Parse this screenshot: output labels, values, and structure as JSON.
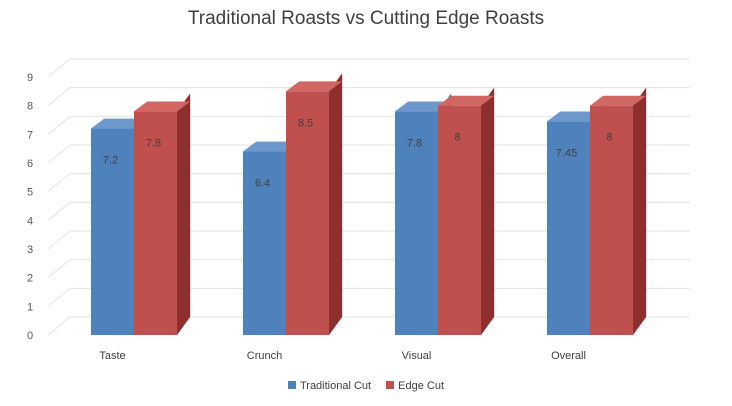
{
  "chart_data": {
    "type": "bar",
    "title": "Traditional Roasts vs Cutting Edge Roasts",
    "categories": [
      "Taste",
      "Crunch",
      "Visual",
      "Overall"
    ],
    "series": [
      {
        "name": "Traditional Cut",
        "values": [
          7.2,
          6.4,
          7.8,
          7.45
        ],
        "labels": [
          "7.2",
          "6.4",
          "7.8",
          "7.45"
        ],
        "color": "#4f81bd"
      },
      {
        "name": "Edge Cut",
        "values": [
          7.8,
          8.5,
          8,
          8
        ],
        "labels": [
          "7.8",
          "8.5",
          "8",
          "8"
        ],
        "color": "#c0504d"
      }
    ],
    "yticks": [
      0,
      1,
      2,
      3,
      4,
      5,
      6,
      7,
      8,
      9
    ],
    "ylim": [
      0,
      9
    ],
    "grid": true,
    "three_d": true,
    "legend_position": "bottom"
  }
}
